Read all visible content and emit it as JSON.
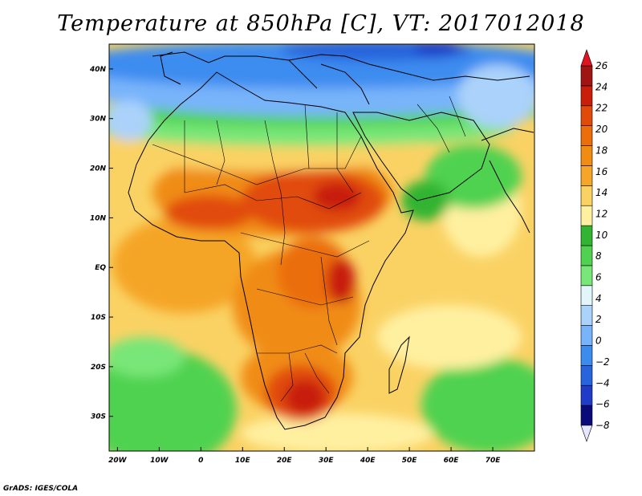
{
  "title": "Temperature at 850hPa [C], VT: 2017012018",
  "credit": "GrADS: IGES/COLA",
  "map": {
    "projection": "lat-lon",
    "lon_range": [
      -22,
      80
    ],
    "lat_range": [
      -37,
      45
    ],
    "lat_labels": [
      {
        "lat": 40,
        "label": "40N"
      },
      {
        "lat": 30,
        "label": "30N"
      },
      {
        "lat": 20,
        "label": "20N"
      },
      {
        "lat": 10,
        "label": "10N"
      },
      {
        "lat": 0,
        "label": "EQ"
      },
      {
        "lat": -10,
        "label": "10S"
      },
      {
        "lat": -20,
        "label": "20S"
      },
      {
        "lat": -30,
        "label": "30S"
      }
    ],
    "lon_labels": [
      {
        "lon": -20,
        "label": "20W"
      },
      {
        "lon": -10,
        "label": "10W"
      },
      {
        "lon": 0,
        "label": "0"
      },
      {
        "lon": 10,
        "label": "10E"
      },
      {
        "lon": 20,
        "label": "20E"
      },
      {
        "lon": 30,
        "label": "30E"
      },
      {
        "lon": 40,
        "label": "40E"
      },
      {
        "lon": 50,
        "label": "50E"
      },
      {
        "lon": 60,
        "label": "60E"
      },
      {
        "lon": 70,
        "label": "70E"
      }
    ]
  },
  "colorbar": {
    "ticks": [
      {
        "value": 26,
        "label": "26"
      },
      {
        "value": 24,
        "label": "24"
      },
      {
        "value": 22,
        "label": "22"
      },
      {
        "value": 20,
        "label": "20"
      },
      {
        "value": 18,
        "label": "18"
      },
      {
        "value": 16,
        "label": "16"
      },
      {
        "value": 14,
        "label": "14"
      },
      {
        "value": 12,
        "label": "12"
      },
      {
        "value": 10,
        "label": "10"
      },
      {
        "value": 8,
        "label": "8"
      },
      {
        "value": 6,
        "label": "6"
      },
      {
        "value": 4,
        "label": "4"
      },
      {
        "value": 2,
        "label": "2"
      },
      {
        "value": 0,
        "label": "0"
      },
      {
        "value": -2,
        "label": "−2"
      },
      {
        "value": -4,
        "label": "−4"
      },
      {
        "value": -6,
        "label": "−6"
      },
      {
        "value": -8,
        "label": "−8"
      }
    ],
    "colors": [
      "#0a0a78",
      "#1e3cc8",
      "#2864dc",
      "#3c8cf0",
      "#78b4fa",
      "#aad2fa",
      "#e1f5fa",
      "#78e678",
      "#50d250",
      "#32b432",
      "#fff0a0",
      "#fad264",
      "#f5a528",
      "#f08c14",
      "#eb6e0a",
      "#e14b0a",
      "#c81e0a",
      "#a01414"
    ],
    "below_color": "#e6e6ff",
    "above_color": "#e0141e"
  }
}
